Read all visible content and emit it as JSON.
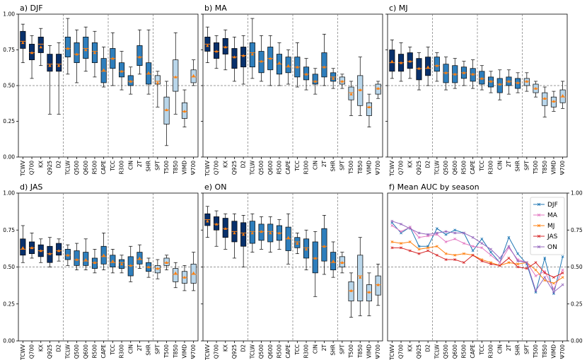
{
  "categories": [
    "TCWV",
    "Q700",
    "KX",
    "Q925",
    "D2",
    "TCLW",
    "Q500",
    "Q600",
    "R500",
    "CAPE",
    "TCC",
    "R300",
    "CIN",
    "2T",
    "SHR",
    "SPT",
    "T500",
    "T850",
    "VIMD",
    "Ψ700"
  ],
  "group_separators_after": [
    "D2",
    "CAPE",
    "SHR"
  ],
  "y_ticks": [
    "0.00",
    "0.25",
    "0.50",
    "0.75",
    "1.00"
  ],
  "colors": {
    "dark": "#08306b",
    "mid": "#2e7ebc",
    "light": "#b9d6ea",
    "median": "#ff7f0e",
    "mean_marker": "#ff7f0e"
  },
  "chart_data": [
    {
      "type": "box",
      "title": "a) DJF",
      "ylim": [
        0,
        1
      ],
      "refline": 0.5,
      "shade": "dark-to-light",
      "boxes": [
        {
          "lo": 0.66,
          "q1": 0.76,
          "med": 0.81,
          "q3": 0.88,
          "hi": 0.93,
          "mean": 0.8
        },
        {
          "lo": 0.55,
          "q1": 0.68,
          "med": 0.73,
          "q3": 0.79,
          "hi": 0.85,
          "mean": 0.73
        },
        {
          "lo": 0.64,
          "q1": 0.73,
          "med": 0.79,
          "q3": 0.84,
          "hi": 0.9,
          "mean": 0.77
        },
        {
          "lo": 0.3,
          "q1": 0.6,
          "med": 0.65,
          "q3": 0.72,
          "hi": 0.78,
          "mean": 0.64
        },
        {
          "lo": 0.3,
          "q1": 0.6,
          "med": 0.65,
          "q3": 0.72,
          "hi": 0.8,
          "mean": 0.64
        },
        {
          "lo": 0.58,
          "q1": 0.7,
          "med": 0.76,
          "q3": 0.84,
          "hi": 0.97,
          "mean": 0.76
        },
        {
          "lo": 0.52,
          "q1": 0.66,
          "med": 0.72,
          "q3": 0.8,
          "hi": 0.89,
          "mean": 0.72
        },
        {
          "lo": 0.6,
          "q1": 0.69,
          "med": 0.76,
          "q3": 0.84,
          "hi": 0.91,
          "mean": 0.75
        },
        {
          "lo": 0.56,
          "q1": 0.66,
          "med": 0.74,
          "q3": 0.8,
          "hi": 0.88,
          "mean": 0.73
        },
        {
          "lo": 0.49,
          "q1": 0.52,
          "med": 0.6,
          "q3": 0.69,
          "hi": 0.77,
          "mean": 0.61
        },
        {
          "lo": 0.5,
          "q1": 0.62,
          "med": 0.69,
          "q3": 0.76,
          "hi": 0.87,
          "mean": 0.69
        },
        {
          "lo": 0.47,
          "q1": 0.56,
          "med": 0.6,
          "q3": 0.66,
          "hi": 0.74,
          "mean": 0.6
        },
        {
          "lo": 0.44,
          "q1": 0.5,
          "med": 0.53,
          "q3": 0.57,
          "hi": 0.63,
          "mean": 0.53
        },
        {
          "lo": 0.58,
          "q1": 0.64,
          "med": 0.7,
          "q3": 0.78,
          "hi": 0.89,
          "mean": 0.7
        },
        {
          "lo": 0.44,
          "q1": 0.51,
          "med": 0.58,
          "q3": 0.66,
          "hi": 0.89,
          "mean": 0.59
        },
        {
          "lo": 0.35,
          "q1": 0.51,
          "med": 0.53,
          "q3": 0.57,
          "hi": 0.6,
          "mean": 0.52
        },
        {
          "lo": 0.08,
          "q1": 0.23,
          "med": 0.33,
          "q3": 0.42,
          "hi": 0.53,
          "mean": 0.33
        },
        {
          "lo": 0.3,
          "q1": 0.46,
          "med": 0.56,
          "q3": 0.68,
          "hi": 0.87,
          "mean": 0.56
        },
        {
          "lo": 0.21,
          "q1": 0.27,
          "med": 0.32,
          "q3": 0.38,
          "hi": 0.47,
          "mean": 0.32
        },
        {
          "lo": 0.5,
          "q1": 0.52,
          "med": 0.56,
          "q3": 0.61,
          "hi": 0.68,
          "mean": 0.57
        }
      ]
    },
    {
      "type": "box",
      "title": "b) MA",
      "ylim": [
        0,
        1
      ],
      "refline": 0.5,
      "shade": "dark-to-light",
      "boxes": [
        {
          "lo": 0.66,
          "q1": 0.74,
          "med": 0.79,
          "q3": 0.84,
          "hi": 0.91,
          "mean": 0.78
        },
        {
          "lo": 0.62,
          "q1": 0.69,
          "med": 0.74,
          "q3": 0.8,
          "hi": 0.85,
          "mean": 0.74
        },
        {
          "lo": 0.61,
          "q1": 0.72,
          "med": 0.77,
          "q3": 0.83,
          "hi": 0.89,
          "mean": 0.77
        },
        {
          "lo": 0.53,
          "q1": 0.62,
          "med": 0.7,
          "q3": 0.76,
          "hi": 0.84,
          "mean": 0.7
        },
        {
          "lo": 0.51,
          "q1": 0.63,
          "med": 0.71,
          "q3": 0.77,
          "hi": 0.85,
          "mean": 0.71
        },
        {
          "lo": 0.55,
          "q1": 0.63,
          "med": 0.73,
          "q3": 0.8,
          "hi": 0.97,
          "mean": 0.72
        },
        {
          "lo": 0.53,
          "q1": 0.59,
          "med": 0.67,
          "q3": 0.74,
          "hi": 0.85,
          "mean": 0.67
        },
        {
          "lo": 0.5,
          "q1": 0.61,
          "med": 0.69,
          "q3": 0.77,
          "hi": 0.85,
          "mean": 0.69
        },
        {
          "lo": 0.5,
          "q1": 0.58,
          "med": 0.65,
          "q3": 0.72,
          "hi": 0.8,
          "mean": 0.66
        },
        {
          "lo": 0.51,
          "q1": 0.59,
          "med": 0.63,
          "q3": 0.7,
          "hi": 0.75,
          "mean": 0.64
        },
        {
          "lo": 0.49,
          "q1": 0.56,
          "med": 0.63,
          "q3": 0.7,
          "hi": 0.8,
          "mean": 0.63
        },
        {
          "lo": 0.47,
          "q1": 0.54,
          "med": 0.58,
          "q3": 0.63,
          "hi": 0.69,
          "mean": 0.58
        },
        {
          "lo": 0.44,
          "q1": 0.51,
          "med": 0.53,
          "q3": 0.58,
          "hi": 0.62,
          "mean": 0.53
        },
        {
          "lo": 0.5,
          "q1": 0.56,
          "med": 0.63,
          "q3": 0.73,
          "hi": 0.86,
          "mean": 0.63
        },
        {
          "lo": 0.48,
          "q1": 0.53,
          "med": 0.56,
          "q3": 0.59,
          "hi": 0.62,
          "mean": 0.55
        },
        {
          "lo": 0.48,
          "q1": 0.51,
          "med": 0.53,
          "q3": 0.56,
          "hi": 0.58,
          "mean": 0.53
        },
        {
          "lo": 0.29,
          "q1": 0.4,
          "med": 0.45,
          "q3": 0.49,
          "hi": 0.53,
          "mean": 0.44
        },
        {
          "lo": 0.29,
          "q1": 0.36,
          "med": 0.47,
          "q3": 0.57,
          "hi": 0.7,
          "mean": 0.47
        },
        {
          "lo": 0.21,
          "q1": 0.29,
          "med": 0.35,
          "q3": 0.38,
          "hi": 0.44,
          "mean": 0.35
        },
        {
          "lo": 0.41,
          "q1": 0.44,
          "med": 0.48,
          "q3": 0.51,
          "hi": 0.53,
          "mean": 0.48
        }
      ]
    },
    {
      "type": "box",
      "title": "c) MJ",
      "ylim": [
        0,
        1
      ],
      "refline": 0.5,
      "shade": "dark-to-light",
      "boxes": [
        {
          "lo": 0.55,
          "q1": 0.6,
          "med": 0.66,
          "q3": 0.75,
          "hi": 0.82,
          "mean": 0.67
        },
        {
          "lo": 0.53,
          "q1": 0.6,
          "med": 0.66,
          "q3": 0.72,
          "hi": 0.8,
          "mean": 0.66
        },
        {
          "lo": 0.55,
          "q1": 0.62,
          "med": 0.67,
          "q3": 0.73,
          "hi": 0.77,
          "mean": 0.67
        },
        {
          "lo": 0.47,
          "q1": 0.54,
          "med": 0.62,
          "q3": 0.69,
          "hi": 0.73,
          "mean": 0.62
        },
        {
          "lo": 0.5,
          "q1": 0.57,
          "med": 0.62,
          "q3": 0.7,
          "hi": 0.77,
          "mean": 0.63
        },
        {
          "lo": 0.53,
          "q1": 0.6,
          "med": 0.64,
          "q3": 0.7,
          "hi": 0.73,
          "mean": 0.64
        },
        {
          "lo": 0.47,
          "q1": 0.52,
          "med": 0.59,
          "q3": 0.65,
          "hi": 0.7,
          "mean": 0.59
        },
        {
          "lo": 0.48,
          "q1": 0.52,
          "med": 0.58,
          "q3": 0.64,
          "hi": 0.69,
          "mean": 0.58
        },
        {
          "lo": 0.5,
          "q1": 0.55,
          "med": 0.59,
          "q3": 0.63,
          "hi": 0.67,
          "mean": 0.59
        },
        {
          "lo": 0.48,
          "q1": 0.53,
          "med": 0.58,
          "q3": 0.62,
          "hi": 0.68,
          "mean": 0.58
        },
        {
          "lo": 0.47,
          "q1": 0.51,
          "med": 0.55,
          "q3": 0.6,
          "hi": 0.64,
          "mean": 0.55
        },
        {
          "lo": 0.45,
          "q1": 0.49,
          "med": 0.53,
          "q3": 0.56,
          "hi": 0.6,
          "mean": 0.53
        },
        {
          "lo": 0.4,
          "q1": 0.45,
          "med": 0.51,
          "q3": 0.55,
          "hi": 0.61,
          "mean": 0.51
        },
        {
          "lo": 0.44,
          "q1": 0.5,
          "med": 0.53,
          "q3": 0.56,
          "hi": 0.61,
          "mean": 0.53
        },
        {
          "lo": 0.45,
          "q1": 0.48,
          "med": 0.52,
          "q3": 0.55,
          "hi": 0.59,
          "mean": 0.52
        },
        {
          "lo": 0.46,
          "q1": 0.5,
          "med": 0.53,
          "q3": 0.55,
          "hi": 0.59,
          "mean": 0.53
        },
        {
          "lo": 0.42,
          "q1": 0.45,
          "med": 0.48,
          "q3": 0.51,
          "hi": 0.53,
          "mean": 0.48
        },
        {
          "lo": 0.28,
          "q1": 0.36,
          "med": 0.41,
          "q3": 0.45,
          "hi": 0.49,
          "mean": 0.41
        },
        {
          "lo": 0.32,
          "q1": 0.35,
          "med": 0.39,
          "q3": 0.42,
          "hi": 0.46,
          "mean": 0.39
        },
        {
          "lo": 0.34,
          "q1": 0.38,
          "med": 0.42,
          "q3": 0.47,
          "hi": 0.53,
          "mean": 0.43
        }
      ]
    },
    {
      "type": "box",
      "title": "d) JAS",
      "ylim": [
        0,
        1
      ],
      "refline": 0.5,
      "shade": "dark-to-light",
      "boxes": [
        {
          "lo": 0.53,
          "q1": 0.58,
          "med": 0.62,
          "q3": 0.69,
          "hi": 0.78,
          "mean": 0.63
        },
        {
          "lo": 0.56,
          "q1": 0.59,
          "med": 0.63,
          "q3": 0.67,
          "hi": 0.73,
          "mean": 0.63
        },
        {
          "lo": 0.53,
          "q1": 0.57,
          "med": 0.61,
          "q3": 0.65,
          "hi": 0.69,
          "mean": 0.61
        },
        {
          "lo": 0.5,
          "q1": 0.53,
          "med": 0.59,
          "q3": 0.64,
          "hi": 0.7,
          "mean": 0.59
        },
        {
          "lo": 0.54,
          "q1": 0.58,
          "med": 0.61,
          "q3": 0.66,
          "hi": 0.69,
          "mean": 0.61
        },
        {
          "lo": 0.51,
          "q1": 0.55,
          "med": 0.58,
          "q3": 0.62,
          "hi": 0.65,
          "mean": 0.58
        },
        {
          "lo": 0.48,
          "q1": 0.51,
          "med": 0.55,
          "q3": 0.61,
          "hi": 0.66,
          "mean": 0.55
        },
        {
          "lo": 0.48,
          "q1": 0.51,
          "med": 0.54,
          "q3": 0.6,
          "hi": 0.69,
          "mean": 0.55
        },
        {
          "lo": 0.46,
          "q1": 0.49,
          "med": 0.53,
          "q3": 0.56,
          "hi": 0.62,
          "mean": 0.53
        },
        {
          "lo": 0.48,
          "q1": 0.52,
          "med": 0.57,
          "q3": 0.64,
          "hi": 0.73,
          "mean": 0.58
        },
        {
          "lo": 0.46,
          "q1": 0.5,
          "med": 0.53,
          "q3": 0.58,
          "hi": 0.62,
          "mean": 0.54
        },
        {
          "lo": 0.46,
          "q1": 0.49,
          "med": 0.53,
          "q3": 0.55,
          "hi": 0.58,
          "mean": 0.52
        },
        {
          "lo": 0.4,
          "q1": 0.44,
          "med": 0.51,
          "q3": 0.57,
          "hi": 0.64,
          "mean": 0.51
        },
        {
          "lo": 0.49,
          "q1": 0.52,
          "med": 0.55,
          "q3": 0.6,
          "hi": 0.65,
          "mean": 0.56
        },
        {
          "lo": 0.43,
          "q1": 0.47,
          "med": 0.5,
          "q3": 0.53,
          "hi": 0.56,
          "mean": 0.5
        },
        {
          "lo": 0.42,
          "q1": 0.46,
          "med": 0.49,
          "q3": 0.51,
          "hi": 0.55,
          "mean": 0.49
        },
        {
          "lo": 0.48,
          "q1": 0.51,
          "med": 0.53,
          "q3": 0.56,
          "hi": 0.58,
          "mean": 0.53
        },
        {
          "lo": 0.36,
          "q1": 0.4,
          "med": 0.45,
          "q3": 0.49,
          "hi": 0.53,
          "mean": 0.46
        },
        {
          "lo": 0.34,
          "q1": 0.39,
          "med": 0.43,
          "q3": 0.47,
          "hi": 0.51,
          "mean": 0.43
        },
        {
          "lo": 0.34,
          "q1": 0.39,
          "med": 0.45,
          "q3": 0.52,
          "hi": 0.6,
          "mean": 0.46
        }
      ]
    },
    {
      "type": "box",
      "title": "e) ON",
      "ylim": [
        0,
        1
      ],
      "refline": 0.5,
      "shade": "dark-to-light",
      "boxes": [
        {
          "lo": 0.7,
          "q1": 0.78,
          "med": 0.82,
          "q3": 0.86,
          "hi": 0.91,
          "mean": 0.81
        },
        {
          "lo": 0.64,
          "q1": 0.75,
          "med": 0.79,
          "q3": 0.84,
          "hi": 0.88,
          "mean": 0.79
        },
        {
          "lo": 0.62,
          "q1": 0.7,
          "med": 0.76,
          "q3": 0.83,
          "hi": 0.86,
          "mean": 0.76
        },
        {
          "lo": 0.56,
          "q1": 0.67,
          "med": 0.74,
          "q3": 0.81,
          "hi": 0.86,
          "mean": 0.73
        },
        {
          "lo": 0.5,
          "q1": 0.64,
          "med": 0.73,
          "q3": 0.8,
          "hi": 0.85,
          "mean": 0.72
        },
        {
          "lo": 0.6,
          "q1": 0.66,
          "med": 0.74,
          "q3": 0.81,
          "hi": 0.86,
          "mean": 0.73
        },
        {
          "lo": 0.62,
          "q1": 0.68,
          "med": 0.74,
          "q3": 0.79,
          "hi": 0.84,
          "mean": 0.74
        },
        {
          "lo": 0.6,
          "q1": 0.67,
          "med": 0.74,
          "q3": 0.79,
          "hi": 0.84,
          "mean": 0.73
        },
        {
          "lo": 0.62,
          "q1": 0.68,
          "med": 0.73,
          "q3": 0.78,
          "hi": 0.82,
          "mean": 0.73
        },
        {
          "lo": 0.52,
          "q1": 0.61,
          "med": 0.69,
          "q3": 0.77,
          "hi": 0.86,
          "mean": 0.7
        },
        {
          "lo": 0.59,
          "q1": 0.63,
          "med": 0.67,
          "q3": 0.7,
          "hi": 0.73,
          "mean": 0.66
        },
        {
          "lo": 0.48,
          "q1": 0.56,
          "med": 0.63,
          "q3": 0.69,
          "hi": 0.75,
          "mean": 0.62
        },
        {
          "lo": 0.3,
          "q1": 0.46,
          "med": 0.56,
          "q3": 0.67,
          "hi": 0.74,
          "mean": 0.56
        },
        {
          "lo": 0.45,
          "q1": 0.54,
          "med": 0.64,
          "q3": 0.76,
          "hi": 0.85,
          "mean": 0.64
        },
        {
          "lo": 0.43,
          "q1": 0.48,
          "med": 0.53,
          "q3": 0.6,
          "hi": 0.67,
          "mean": 0.54
        },
        {
          "lo": 0.46,
          "q1": 0.5,
          "med": 0.53,
          "q3": 0.57,
          "hi": 0.6,
          "mean": 0.53
        },
        {
          "lo": 0.16,
          "q1": 0.27,
          "med": 0.34,
          "q3": 0.4,
          "hi": 0.46,
          "mean": 0.34
        },
        {
          "lo": 0.17,
          "q1": 0.27,
          "med": 0.44,
          "q3": 0.58,
          "hi": 0.7,
          "mean": 0.43
        },
        {
          "lo": 0.17,
          "q1": 0.27,
          "med": 0.33,
          "q3": 0.38,
          "hi": 0.46,
          "mean": 0.33
        },
        {
          "lo": 0.24,
          "q1": 0.31,
          "med": 0.38,
          "q3": 0.44,
          "hi": 0.52,
          "mean": 0.38
        }
      ]
    },
    {
      "type": "line",
      "title": "f) Mean AUC by season",
      "ylim": [
        0,
        1
      ],
      "refline": 0.5,
      "y_axis_side": "right",
      "legend_position": "top-right",
      "series": [
        {
          "name": "DJF",
          "color": "#1f77b4",
          "marker": "x",
          "values": [
            0.8,
            0.73,
            0.77,
            0.64,
            0.64,
            0.76,
            0.72,
            0.75,
            0.73,
            0.61,
            0.69,
            0.6,
            0.53,
            0.7,
            0.59,
            0.52,
            0.33,
            0.56,
            0.32,
            0.57
          ]
        },
        {
          "name": "MA",
          "color": "#e377c2",
          "marker": "x",
          "values": [
            0.78,
            0.74,
            0.77,
            0.7,
            0.71,
            0.72,
            0.67,
            0.69,
            0.66,
            0.64,
            0.63,
            0.58,
            0.53,
            0.63,
            0.55,
            0.53,
            0.44,
            0.47,
            0.35,
            0.48
          ]
        },
        {
          "name": "MJ",
          "color": "#ff7f0e",
          "marker": "x",
          "values": [
            0.67,
            0.66,
            0.67,
            0.62,
            0.63,
            0.64,
            0.59,
            0.58,
            0.59,
            0.58,
            0.55,
            0.53,
            0.51,
            0.53,
            0.52,
            0.53,
            0.48,
            0.41,
            0.39,
            0.43
          ]
        },
        {
          "name": "JAS",
          "color": "#d62728",
          "marker": "x",
          "values": [
            0.63,
            0.63,
            0.61,
            0.59,
            0.61,
            0.58,
            0.55,
            0.55,
            0.53,
            0.58,
            0.54,
            0.52,
            0.51,
            0.56,
            0.5,
            0.49,
            0.53,
            0.46,
            0.43,
            0.46
          ]
        },
        {
          "name": "ON",
          "color": "#9467bd",
          "marker": "x",
          "values": [
            0.81,
            0.79,
            0.76,
            0.73,
            0.72,
            0.73,
            0.74,
            0.73,
            0.73,
            0.7,
            0.66,
            0.62,
            0.56,
            0.64,
            0.54,
            0.53,
            0.34,
            0.43,
            0.33,
            0.38
          ]
        }
      ]
    }
  ]
}
